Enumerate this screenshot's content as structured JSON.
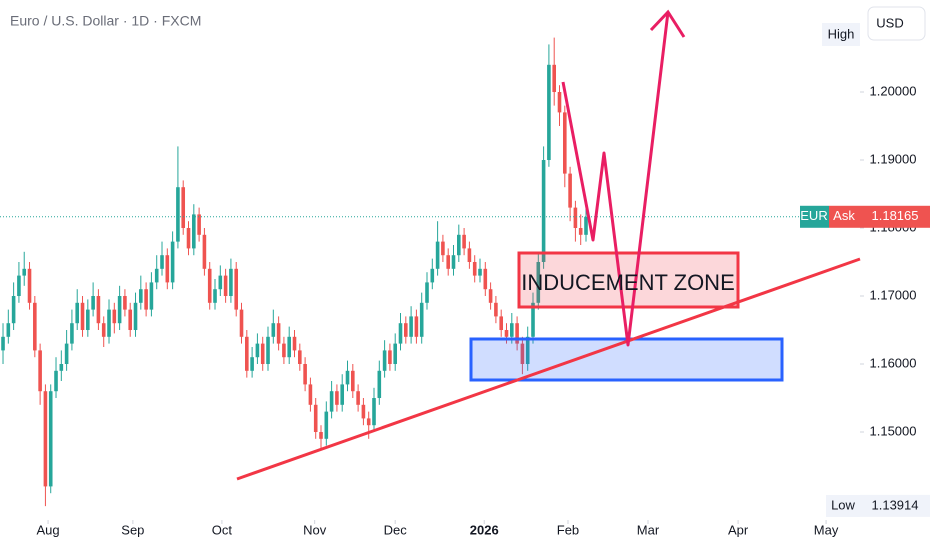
{
  "chart_data": {
    "type": "candlestick",
    "title": "Euro / U.S. Dollar · 1D · FXCM",
    "currency_button": "USD",
    "up_color": "#26a69a",
    "down_color": "#ef5350",
    "grid": false,
    "ylim": [
      1.13706,
      1.21353
    ],
    "yticks": [
      {
        "value": 1.15,
        "label": "1.15000"
      },
      {
        "value": 1.16,
        "label": "1.16000"
      },
      {
        "value": 1.17,
        "label": "1.17000"
      },
      {
        "value": 1.18,
        "label": "1.18000"
      },
      {
        "value": 1.19,
        "label": "1.19000"
      },
      {
        "value": 1.2,
        "label": "1.20000"
      }
    ],
    "xlim": [
      -0.57,
      161.7
    ],
    "xticks": [
      {
        "value": 8.5,
        "label": "Aug"
      },
      {
        "value": 24.5,
        "label": "Sep"
      },
      {
        "value": 41.3,
        "label": "Oct"
      },
      {
        "value": 58.8,
        "label": "Nov"
      },
      {
        "value": 74,
        "label": "Dec"
      },
      {
        "value": 90.8,
        "label": "2026"
      },
      {
        "value": 106.6,
        "label": "Feb"
      },
      {
        "value": 121.7,
        "label": "Mar"
      },
      {
        "value": 138.7,
        "label": "Apr"
      },
      {
        "value": 155.3,
        "label": "May"
      }
    ],
    "high_label": "High",
    "low_label": "Low",
    "low_value": 1.13914,
    "symbol_tag": "EUR",
    "ask_tag": "Ask",
    "last_price": 1.18165,
    "annotation": "INDUCEMENT ZONE",
    "ohlc": [
      [
        1.162,
        1.166,
        1.16,
        1.164
      ],
      [
        1.164,
        1.168,
        1.163,
        1.166
      ],
      [
        1.166,
        1.172,
        1.165,
        1.17
      ],
      [
        1.17,
        1.175,
        1.169,
        1.173
      ],
      [
        1.173,
        1.1765,
        1.1715,
        1.174
      ],
      [
        1.174,
        1.175,
        1.168,
        1.169
      ],
      [
        1.169,
        1.17,
        1.161,
        1.162
      ],
      [
        1.162,
        1.163,
        1.154,
        1.156
      ],
      [
        1.156,
        1.157,
        1.1391,
        1.142
      ],
      [
        1.142,
        1.157,
        1.141,
        1.156
      ],
      [
        1.156,
        1.161,
        1.155,
        1.159
      ],
      [
        1.159,
        1.162,
        1.1575,
        1.16
      ],
      [
        1.16,
        1.165,
        1.159,
        1.163
      ],
      [
        1.163,
        1.168,
        1.162,
        1.166
      ],
      [
        1.166,
        1.171,
        1.165,
        1.169
      ],
      [
        1.169,
        1.17,
        1.164,
        1.165
      ],
      [
        1.165,
        1.1695,
        1.164,
        1.168
      ],
      [
        1.168,
        1.172,
        1.167,
        1.17
      ],
      [
        1.17,
        1.171,
        1.165,
        1.166
      ],
      [
        1.166,
        1.167,
        1.1625,
        1.164
      ],
      [
        1.164,
        1.1695,
        1.163,
        1.168
      ],
      [
        1.168,
        1.169,
        1.1645,
        1.166
      ],
      [
        1.166,
        1.1715,
        1.165,
        1.17
      ],
      [
        1.17,
        1.171,
        1.167,
        1.168
      ],
      [
        1.168,
        1.169,
        1.164,
        1.165
      ],
      [
        1.165,
        1.1705,
        1.164,
        1.169
      ],
      [
        1.169,
        1.173,
        1.168,
        1.171
      ],
      [
        1.171,
        1.172,
        1.167,
        1.168
      ],
      [
        1.168,
        1.1735,
        1.167,
        1.172
      ],
      [
        1.172,
        1.176,
        1.171,
        1.174
      ],
      [
        1.174,
        1.178,
        1.173,
        1.176
      ],
      [
        1.176,
        1.177,
        1.171,
        1.172
      ],
      [
        1.172,
        1.1795,
        1.171,
        1.178
      ],
      [
        1.178,
        1.192,
        1.177,
        1.186
      ],
      [
        1.186,
        1.187,
        1.179,
        1.18
      ],
      [
        1.18,
        1.181,
        1.176,
        1.177
      ],
      [
        1.177,
        1.1835,
        1.176,
        1.182
      ],
      [
        1.182,
        1.183,
        1.178,
        1.179
      ],
      [
        1.179,
        1.18,
        1.173,
        1.174
      ],
      [
        1.174,
        1.175,
        1.168,
        1.169
      ],
      [
        1.169,
        1.1725,
        1.168,
        1.171
      ],
      [
        1.171,
        1.1745,
        1.17,
        1.173
      ],
      [
        1.173,
        1.174,
        1.169,
        1.17
      ],
      [
        1.17,
        1.1755,
        1.169,
        1.174
      ],
      [
        1.174,
        1.175,
        1.167,
        1.168
      ],
      [
        1.168,
        1.169,
        1.163,
        1.164
      ],
      [
        1.164,
        1.165,
        1.158,
        1.159
      ],
      [
        1.159,
        1.1625,
        1.158,
        1.161
      ],
      [
        1.161,
        1.1645,
        1.16,
        1.163
      ],
      [
        1.163,
        1.164,
        1.159,
        1.16
      ],
      [
        1.16,
        1.1655,
        1.159,
        1.164
      ],
      [
        1.164,
        1.168,
        1.163,
        1.166
      ],
      [
        1.166,
        1.167,
        1.162,
        1.163
      ],
      [
        1.163,
        1.164,
        1.16,
        1.161
      ],
      [
        1.161,
        1.1655,
        1.16,
        1.164
      ],
      [
        1.164,
        1.165,
        1.161,
        1.162
      ],
      [
        1.162,
        1.163,
        1.159,
        1.16
      ],
      [
        1.16,
        1.161,
        1.156,
        1.157
      ],
      [
        1.157,
        1.158,
        1.153,
        1.154
      ],
      [
        1.154,
        1.155,
        1.149,
        1.15
      ],
      [
        1.15,
        1.151,
        1.1475,
        1.149
      ],
      [
        1.149,
        1.1545,
        1.148,
        1.153
      ],
      [
        1.153,
        1.1575,
        1.152,
        1.156
      ],
      [
        1.156,
        1.157,
        1.153,
        1.154
      ],
      [
        1.154,
        1.1585,
        1.153,
        1.157
      ],
      [
        1.157,
        1.1605,
        1.156,
        1.159
      ],
      [
        1.159,
        1.16,
        1.155,
        1.156
      ],
      [
        1.156,
        1.157,
        1.153,
        1.154
      ],
      [
        1.154,
        1.155,
        1.151,
        1.152
      ],
      [
        1.152,
        1.153,
        1.149,
        1.151
      ],
      [
        1.151,
        1.1565,
        1.15,
        1.155
      ],
      [
        1.155,
        1.1605,
        1.154,
        1.159
      ],
      [
        1.159,
        1.1635,
        1.158,
        1.162
      ],
      [
        1.162,
        1.163,
        1.159,
        1.16
      ],
      [
        1.16,
        1.1645,
        1.159,
        1.163
      ],
      [
        1.163,
        1.1675,
        1.162,
        1.166
      ],
      [
        1.166,
        1.167,
        1.163,
        1.164
      ],
      [
        1.164,
        1.1685,
        1.163,
        1.167
      ],
      [
        1.167,
        1.168,
        1.163,
        1.164
      ],
      [
        1.164,
        1.1705,
        1.163,
        1.169
      ],
      [
        1.169,
        1.1735,
        1.168,
        1.172
      ],
      [
        1.172,
        1.1755,
        1.171,
        1.174
      ],
      [
        1.174,
        1.181,
        1.173,
        1.178
      ],
      [
        1.178,
        1.179,
        1.175,
        1.176
      ],
      [
        1.176,
        1.177,
        1.173,
        1.174
      ],
      [
        1.174,
        1.1775,
        1.173,
        1.176
      ],
      [
        1.176,
        1.1805,
        1.175,
        1.179
      ],
      [
        1.179,
        1.18,
        1.176,
        1.177
      ],
      [
        1.177,
        1.178,
        1.174,
        1.175
      ],
      [
        1.175,
        1.176,
        1.172,
        1.173
      ],
      [
        1.173,
        1.1755,
        1.172,
        1.174
      ],
      [
        1.174,
        1.175,
        1.17,
        1.171
      ],
      [
        1.171,
        1.172,
        1.168,
        1.169
      ],
      [
        1.169,
        1.17,
        1.166,
        1.167
      ],
      [
        1.167,
        1.168,
        1.164,
        1.165
      ],
      [
        1.165,
        1.166,
        1.163,
        1.164
      ],
      [
        1.164,
        1.1675,
        1.163,
        1.166
      ],
      [
        1.166,
        1.167,
        1.162,
        1.163
      ],
      [
        1.163,
        1.164,
        1.1585,
        1.16
      ],
      [
        1.16,
        1.1655,
        1.159,
        1.164
      ],
      [
        1.164,
        1.1705,
        1.163,
        1.169
      ],
      [
        1.169,
        1.1765,
        1.168,
        1.175
      ],
      [
        1.175,
        1.192,
        1.174,
        1.19
      ],
      [
        1.19,
        1.207,
        1.189,
        1.204
      ],
      [
        1.204,
        1.208,
        1.198,
        1.2
      ],
      [
        1.2,
        1.201,
        1.195,
        1.197
      ],
      [
        1.197,
        1.198,
        1.186,
        1.188
      ],
      [
        1.188,
        1.189,
        1.181,
        1.183
      ],
      [
        1.183,
        1.184,
        1.178,
        1.18
      ],
      [
        1.18,
        1.182,
        1.1775,
        1.179
      ],
      [
        1.179,
        1.183,
        1.178,
        1.18165
      ]
    ]
  }
}
